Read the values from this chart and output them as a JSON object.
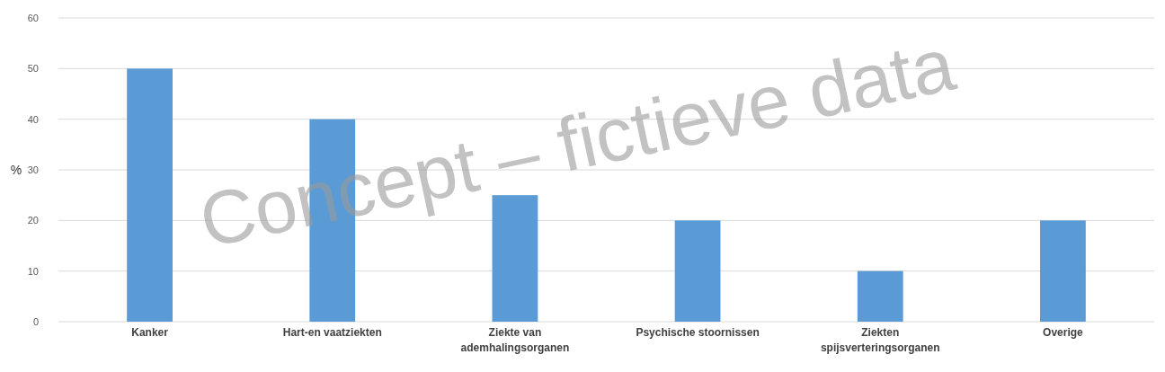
{
  "chart_data": {
    "type": "bar",
    "ylabel": "%",
    "categories": [
      "Kanker",
      "Hart-en vaatziekten",
      "Ziekte van ademhalingsorganen",
      "Psychische stoornissen",
      "Ziekten spijsverteringsorganen",
      "Overige"
    ],
    "values": [
      50,
      40,
      25,
      20,
      10,
      20
    ],
    "color": "#5b9bd5",
    "ylim": [
      0,
      60
    ],
    "yticks": [
      0,
      10,
      20,
      30,
      40,
      50,
      60
    ],
    "grid": "y",
    "annotations": [
      "Concept – fictieve data"
    ]
  }
}
